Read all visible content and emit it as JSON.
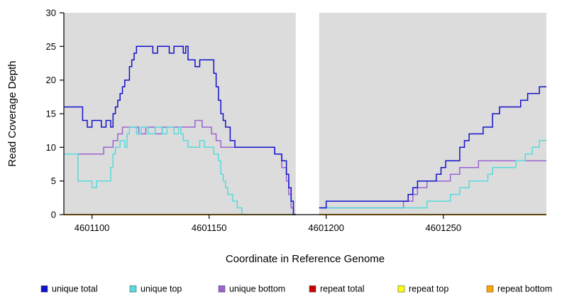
{
  "chart_data": {
    "type": "line",
    "subtype": "step-coverage",
    "title": "",
    "xlabel": "Coordinate in Reference Genome",
    "ylabel": "Read Coverage Depth",
    "xlim": [
      4601088,
      4601294
    ],
    "ylim": [
      0,
      30
    ],
    "xticks": [
      4601100,
      4601150,
      4601200,
      4601250
    ],
    "yticks": [
      0,
      5,
      10,
      15,
      20,
      25,
      30
    ],
    "gap_region": [
      4601187,
      4601197
    ],
    "plot_background": "#DCDCDC",
    "page_background": "#FFFFFF",
    "axis_color": "#000000",
    "grid": "off",
    "legend_position": "bottom",
    "series": [
      {
        "name": "repeat total",
        "color": "#CC0000",
        "segments": [
          {
            "points": [
              [
                4601088,
                0
              ]
            ],
            "end": 4601187
          },
          {
            "points": [
              [
                4601197,
                0
              ]
            ],
            "end": 4601294
          }
        ]
      },
      {
        "name": "repeat top",
        "color": "#FFFF00",
        "segments": [
          {
            "points": [
              [
                4601088,
                0
              ]
            ],
            "end": 4601187
          },
          {
            "points": [
              [
                4601197,
                0
              ]
            ],
            "end": 4601294
          }
        ]
      },
      {
        "name": "unique bottom",
        "color": "#9B63D3",
        "segments": [
          {
            "points": [
              [
                4601088,
                9
              ],
              [
                4601105,
                10
              ],
              [
                4601109,
                11
              ],
              [
                4601111,
                12
              ],
              [
                4601113,
                13
              ],
              [
                4601120,
                12
              ],
              [
                4601123,
                13
              ],
              [
                4601127,
                12
              ],
              [
                4601130,
                13
              ],
              [
                4601144,
                14
              ],
              [
                4601147,
                13
              ],
              [
                4601151,
                12
              ],
              [
                4601153,
                11
              ],
              [
                4601155,
                10
              ],
              [
                4601178,
                9
              ],
              [
                4601181,
                7
              ],
              [
                4601183,
                5
              ],
              [
                4601184,
                3
              ],
              [
                4601185,
                1
              ],
              [
                4601186,
                0
              ]
            ],
            "end": 4601187
          },
          {
            "points": [
              [
                4601197,
                1
              ],
              [
                4601233,
                2
              ],
              [
                4601237,
                3
              ],
              [
                4601239,
                4
              ],
              [
                4601243,
                5
              ],
              [
                4601253,
                6
              ],
              [
                4601257,
                7
              ],
              [
                4601265,
                8
              ]
            ],
            "end": 4601294
          }
        ]
      },
      {
        "name": "unique top",
        "color": "#55DBDB",
        "segments": [
          {
            "points": [
              [
                4601088,
                9
              ],
              [
                4601094,
                5
              ],
              [
                4601100,
                4
              ],
              [
                4601102,
                5
              ],
              [
                4601108,
                7
              ],
              [
                4601109,
                9
              ],
              [
                4601110,
                10
              ],
              [
                4601112,
                11
              ],
              [
                4601114,
                10
              ],
              [
                4601115,
                12
              ],
              [
                4601116,
                13
              ],
              [
                4601119,
                12
              ],
              [
                4601121,
                13
              ],
              [
                4601124,
                12
              ],
              [
                4601127,
                13
              ],
              [
                4601130,
                12
              ],
              [
                4601132,
                13
              ],
              [
                4601135,
                12
              ],
              [
                4601137,
                13
              ],
              [
                4601138,
                12
              ],
              [
                4601139,
                11
              ],
              [
                4601141,
                10
              ],
              [
                4601146,
                11
              ],
              [
                4601148,
                10
              ],
              [
                4601152,
                9
              ],
              [
                4601154,
                8
              ],
              [
                4601155,
                6
              ],
              [
                4601156,
                5
              ],
              [
                4601157,
                4
              ],
              [
                4601158,
                3
              ],
              [
                4601160,
                2
              ],
              [
                4601162,
                1
              ],
              [
                4601164,
                0
              ]
            ],
            "end": 4601187
          },
          {
            "points": [
              [
                4601197,
                1
              ],
              [
                4601243,
                2
              ],
              [
                4601253,
                3
              ],
              [
                4601257,
                4
              ],
              [
                4601261,
                5
              ],
              [
                4601269,
                6
              ],
              [
                4601271,
                7
              ],
              [
                4601281,
                8
              ],
              [
                4601285,
                9
              ],
              [
                4601288,
                10
              ],
              [
                4601291,
                11
              ]
            ],
            "end": 4601294
          }
        ]
      },
      {
        "name": "repeat bottom",
        "color": "#FFA500",
        "segments": [
          {
            "points": [
              [
                4601088,
                0
              ]
            ],
            "end": 4601187
          },
          {
            "points": [
              [
                4601197,
                0
              ]
            ],
            "end": 4601294
          }
        ]
      },
      {
        "name": "unique total",
        "color": "#1111CC",
        "segments": [
          {
            "points": [
              [
                4601088,
                16
              ],
              [
                4601096,
                14
              ],
              [
                4601098,
                13
              ],
              [
                4601100,
                14
              ],
              [
                4601104,
                13
              ],
              [
                4601106,
                14
              ],
              [
                4601108,
                13
              ],
              [
                4601109,
                15
              ],
              [
                4601110,
                16
              ],
              [
                4601111,
                17
              ],
              [
                4601112,
                18
              ],
              [
                4601113,
                19
              ],
              [
                4601114,
                20
              ],
              [
                4601116,
                22
              ],
              [
                4601117,
                23
              ],
              [
                4601118,
                24
              ],
              [
                4601119,
                25
              ],
              [
                4601126,
                24
              ],
              [
                4601128,
                25
              ],
              [
                4601133,
                24
              ],
              [
                4601135,
                25
              ],
              [
                4601139,
                24
              ],
              [
                4601140,
                25
              ],
              [
                4601141,
                23
              ],
              [
                4601144,
                22
              ],
              [
                4601146,
                23
              ],
              [
                4601152,
                21
              ],
              [
                4601153,
                19
              ],
              [
                4601154,
                17
              ],
              [
                4601155,
                15
              ],
              [
                4601156,
                14
              ],
              [
                4601157,
                13
              ],
              [
                4601159,
                11
              ],
              [
                4601161,
                10
              ],
              [
                4601178,
                9
              ],
              [
                4601181,
                8
              ],
              [
                4601183,
                6
              ],
              [
                4601184,
                4
              ],
              [
                4601185,
                2
              ],
              [
                4601186,
                0
              ]
            ],
            "end": 4601187
          },
          {
            "points": [
              [
                4601197,
                1
              ],
              [
                4601200,
                2
              ],
              [
                4601235,
                3
              ],
              [
                4601237,
                4
              ],
              [
                4601239,
                5
              ],
              [
                4601247,
                6
              ],
              [
                4601249,
                7
              ],
              [
                4601251,
                8
              ],
              [
                4601257,
                10
              ],
              [
                4601259,
                11
              ],
              [
                4601261,
                12
              ],
              [
                4601267,
                13
              ],
              [
                4601271,
                15
              ],
              [
                4601274,
                16
              ],
              [
                4601283,
                17
              ],
              [
                4601286,
                18
              ],
              [
                4601291,
                19
              ]
            ],
            "end": 4601294
          }
        ]
      }
    ],
    "legend": [
      {
        "label": "unique total",
        "color": "#1111CC"
      },
      {
        "label": "unique top",
        "color": "#55DBDB"
      },
      {
        "label": "unique bottom",
        "color": "#9B63D3"
      },
      {
        "label": "repeat total",
        "color": "#CC0000"
      },
      {
        "label": "repeat top",
        "color": "#FFFF00"
      },
      {
        "label": "repeat bottom",
        "color": "#FFA500"
      }
    ]
  }
}
